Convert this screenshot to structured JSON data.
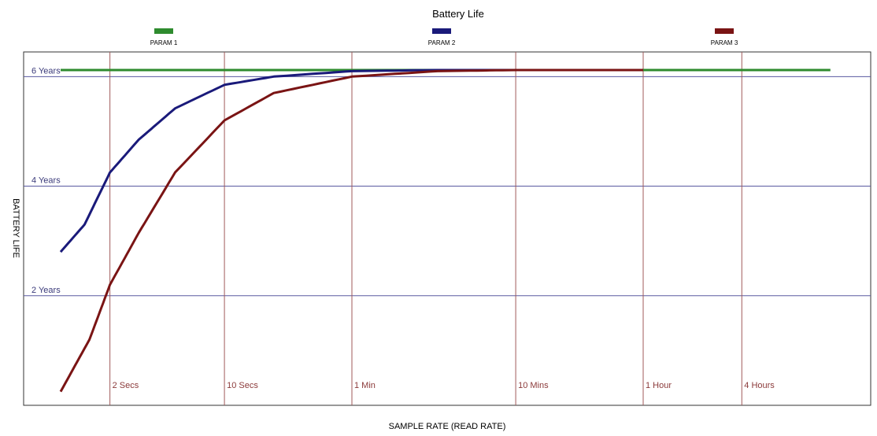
{
  "chart_data": {
    "type": "line",
    "title": "Battery Life",
    "xlabel": "SAMPLE RATE (READ RATE)",
    "ylabel": "BATTERY LIFE",
    "x_scale": "log",
    "x_unit": "seconds",
    "xlim": [
      1,
      50000
    ],
    "ylim": [
      0,
      6.45
    ],
    "x_ticks": [
      {
        "label": "2 Secs",
        "value": 2
      },
      {
        "label": "10 Secs",
        "value": 10
      },
      {
        "label": "1 Min",
        "value": 60
      },
      {
        "label": "10 Mins",
        "value": 600
      },
      {
        "label": "1 Hour",
        "value": 3600
      },
      {
        "label": "4 Hours",
        "value": 14400
      }
    ],
    "y_ticks": [
      {
        "label": "2 Years",
        "value": 2
      },
      {
        "label": "4 Years",
        "value": 4
      },
      {
        "label": "6 Years",
        "value": 6
      }
    ],
    "grid": true,
    "legend_position": "top",
    "series": [
      {
        "name": "PARAM 1",
        "color": "#2e8b2e",
        "x": [
          1,
          50000
        ],
        "y": [
          6.12,
          6.12
        ]
      },
      {
        "name": "PARAM 2",
        "color": "#1a1a7a",
        "x": [
          1,
          1.4,
          2,
          3,
          5,
          10,
          20,
          60,
          200,
          600,
          3600
        ],
        "y": [
          2.8,
          3.3,
          4.25,
          4.85,
          5.42,
          5.85,
          6.0,
          6.1,
          6.12,
          6.12,
          6.12
        ]
      },
      {
        "name": "PARAM 3",
        "color": "#7a1414",
        "x": [
          1,
          1.5,
          2,
          3,
          5,
          10,
          20,
          60,
          200,
          600,
          3600
        ],
        "y": [
          0.25,
          1.2,
          2.2,
          3.15,
          4.25,
          5.2,
          5.7,
          6.0,
          6.1,
          6.12,
          6.12
        ]
      }
    ]
  }
}
